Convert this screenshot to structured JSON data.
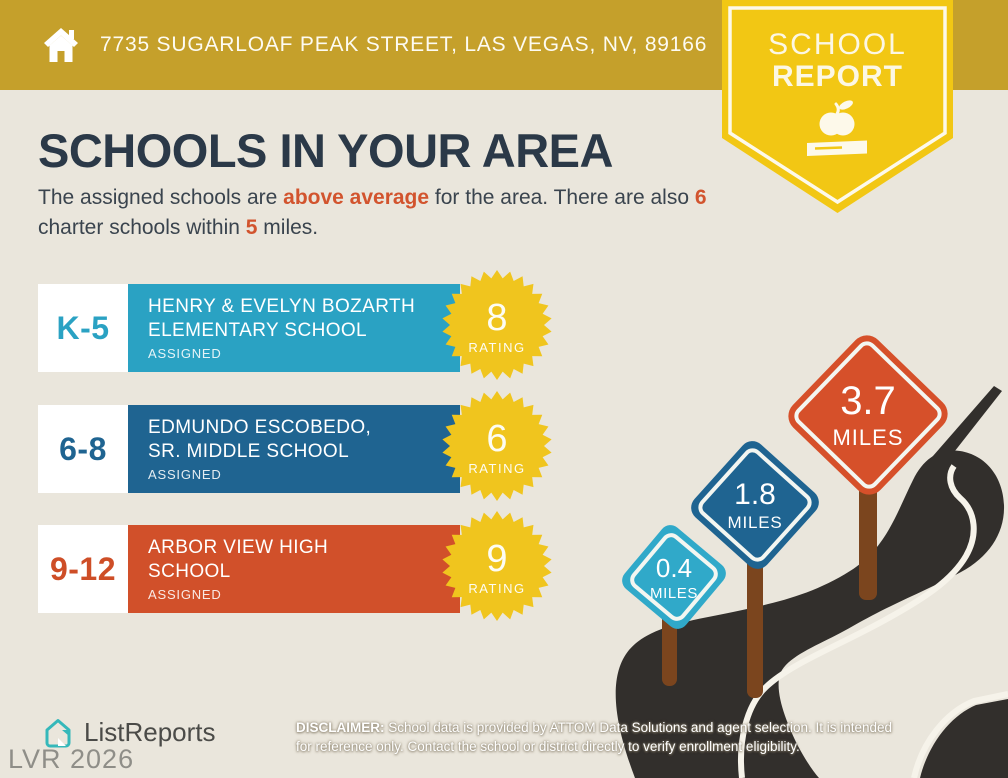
{
  "header": {
    "address": "7735 SUGARLOAF PEAK STREET, LAS VEGAS, NV, 89166"
  },
  "badge": {
    "line1": "SCHOOL",
    "line2": "REPORT"
  },
  "title": "SCHOOLS IN YOUR AREA",
  "intro": {
    "part1": "The assigned schools are ",
    "highlight1": "above average",
    "part2": " for the area. There are also ",
    "highlight2": "6",
    "part3": " charter schools within ",
    "highlight3": "5",
    "part4": " miles."
  },
  "schools": [
    {
      "grades": "K-5",
      "name": "HENRY & EVELYN BOZARTH\nELEMENTARY SCHOOL",
      "status": "ASSIGNED",
      "rating": "8",
      "rating_label": "RATING",
      "color": "#2AA2C3"
    },
    {
      "grades": "6-8",
      "name": "EDMUNDO ESCOBEDO,\nSR. MIDDLE SCHOOL",
      "status": "ASSIGNED",
      "rating": "6",
      "rating_label": "RATING",
      "color": "#1F6491"
    },
    {
      "grades": "9-12",
      "name": "ARBOR VIEW HIGH\nSCHOOL",
      "status": "ASSIGNED",
      "rating": "9",
      "rating_label": "RATING",
      "color": "#D1502A"
    }
  ],
  "distance_signs": [
    {
      "distance": "0.4",
      "unit": "MILES",
      "color": "#30A9C9"
    },
    {
      "distance": "1.8",
      "unit": "MILES",
      "color": "#1F6491"
    },
    {
      "distance": "3.7",
      "unit": "MILES",
      "color": "#D6502A"
    }
  ],
  "footer": {
    "brand": "ListReports",
    "watermark": "LVR 2026",
    "disclaimer_label": "DISCLAIMER:",
    "disclaimer_line1": " School data is provided by ATTOM Data Solutions and agent selection. It is intended",
    "disclaimer_line2": "for reference only. Contact the school or district directly to verify enrollment eligibility."
  },
  "colors": {
    "header_gold": "#C5A02B",
    "badge_yellow": "#F2C714",
    "starburst_yellow": "#F0C51E",
    "background_beige": "#EAE6DC",
    "title_navy": "#2B3948",
    "accent_orange": "#D2542E",
    "road_dark": "#322F2C",
    "post_brown": "#7B451E",
    "brand_teal": "#35B8BA"
  }
}
